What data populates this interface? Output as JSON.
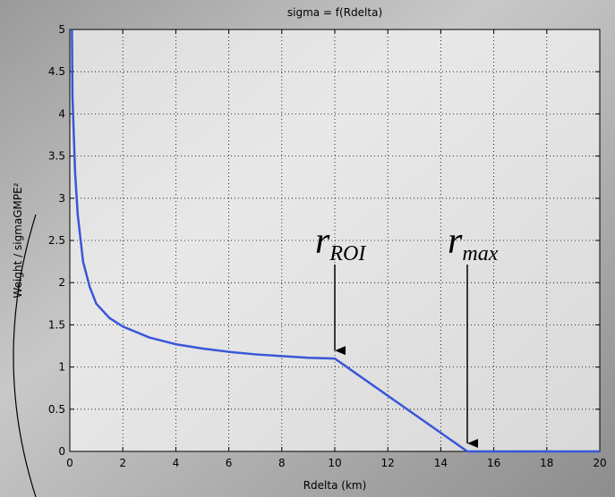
{
  "chart_data": {
    "type": "line",
    "title": "sigma = f(Rdelta)",
    "xlabel": "Rdelta (km)",
    "ylabel": "Weight / sigmaGMPE²",
    "x": [
      0.08,
      0.1,
      0.2,
      0.3,
      0.5,
      0.75,
      1,
      1.5,
      2,
      3,
      4,
      5,
      6,
      7,
      8,
      9,
      10,
      15,
      20
    ],
    "values": [
      5,
      4.2,
      3.3,
      2.8,
      2.25,
      1.95,
      1.75,
      1.58,
      1.48,
      1.35,
      1.27,
      1.22,
      1.18,
      1.15,
      1.13,
      1.11,
      1.1,
      0,
      0
    ],
    "color": "#3a56d8",
    "xlim": [
      0,
      20
    ],
    "xticks": [
      0,
      2,
      4,
      6,
      8,
      10,
      12,
      14,
      16,
      18,
      20
    ],
    "ylim": [
      0,
      5
    ],
    "yticks": [
      0,
      0.5,
      1,
      1.5,
      2,
      2.5,
      3,
      3.5,
      4,
      4.5,
      5
    ],
    "grid": true,
    "annotations": [
      {
        "text": "r",
        "subscript": "ROI",
        "x": 10,
        "y": 1.1
      },
      {
        "text": "r",
        "subscript": "max",
        "x": 15,
        "y": 0
      }
    ]
  }
}
